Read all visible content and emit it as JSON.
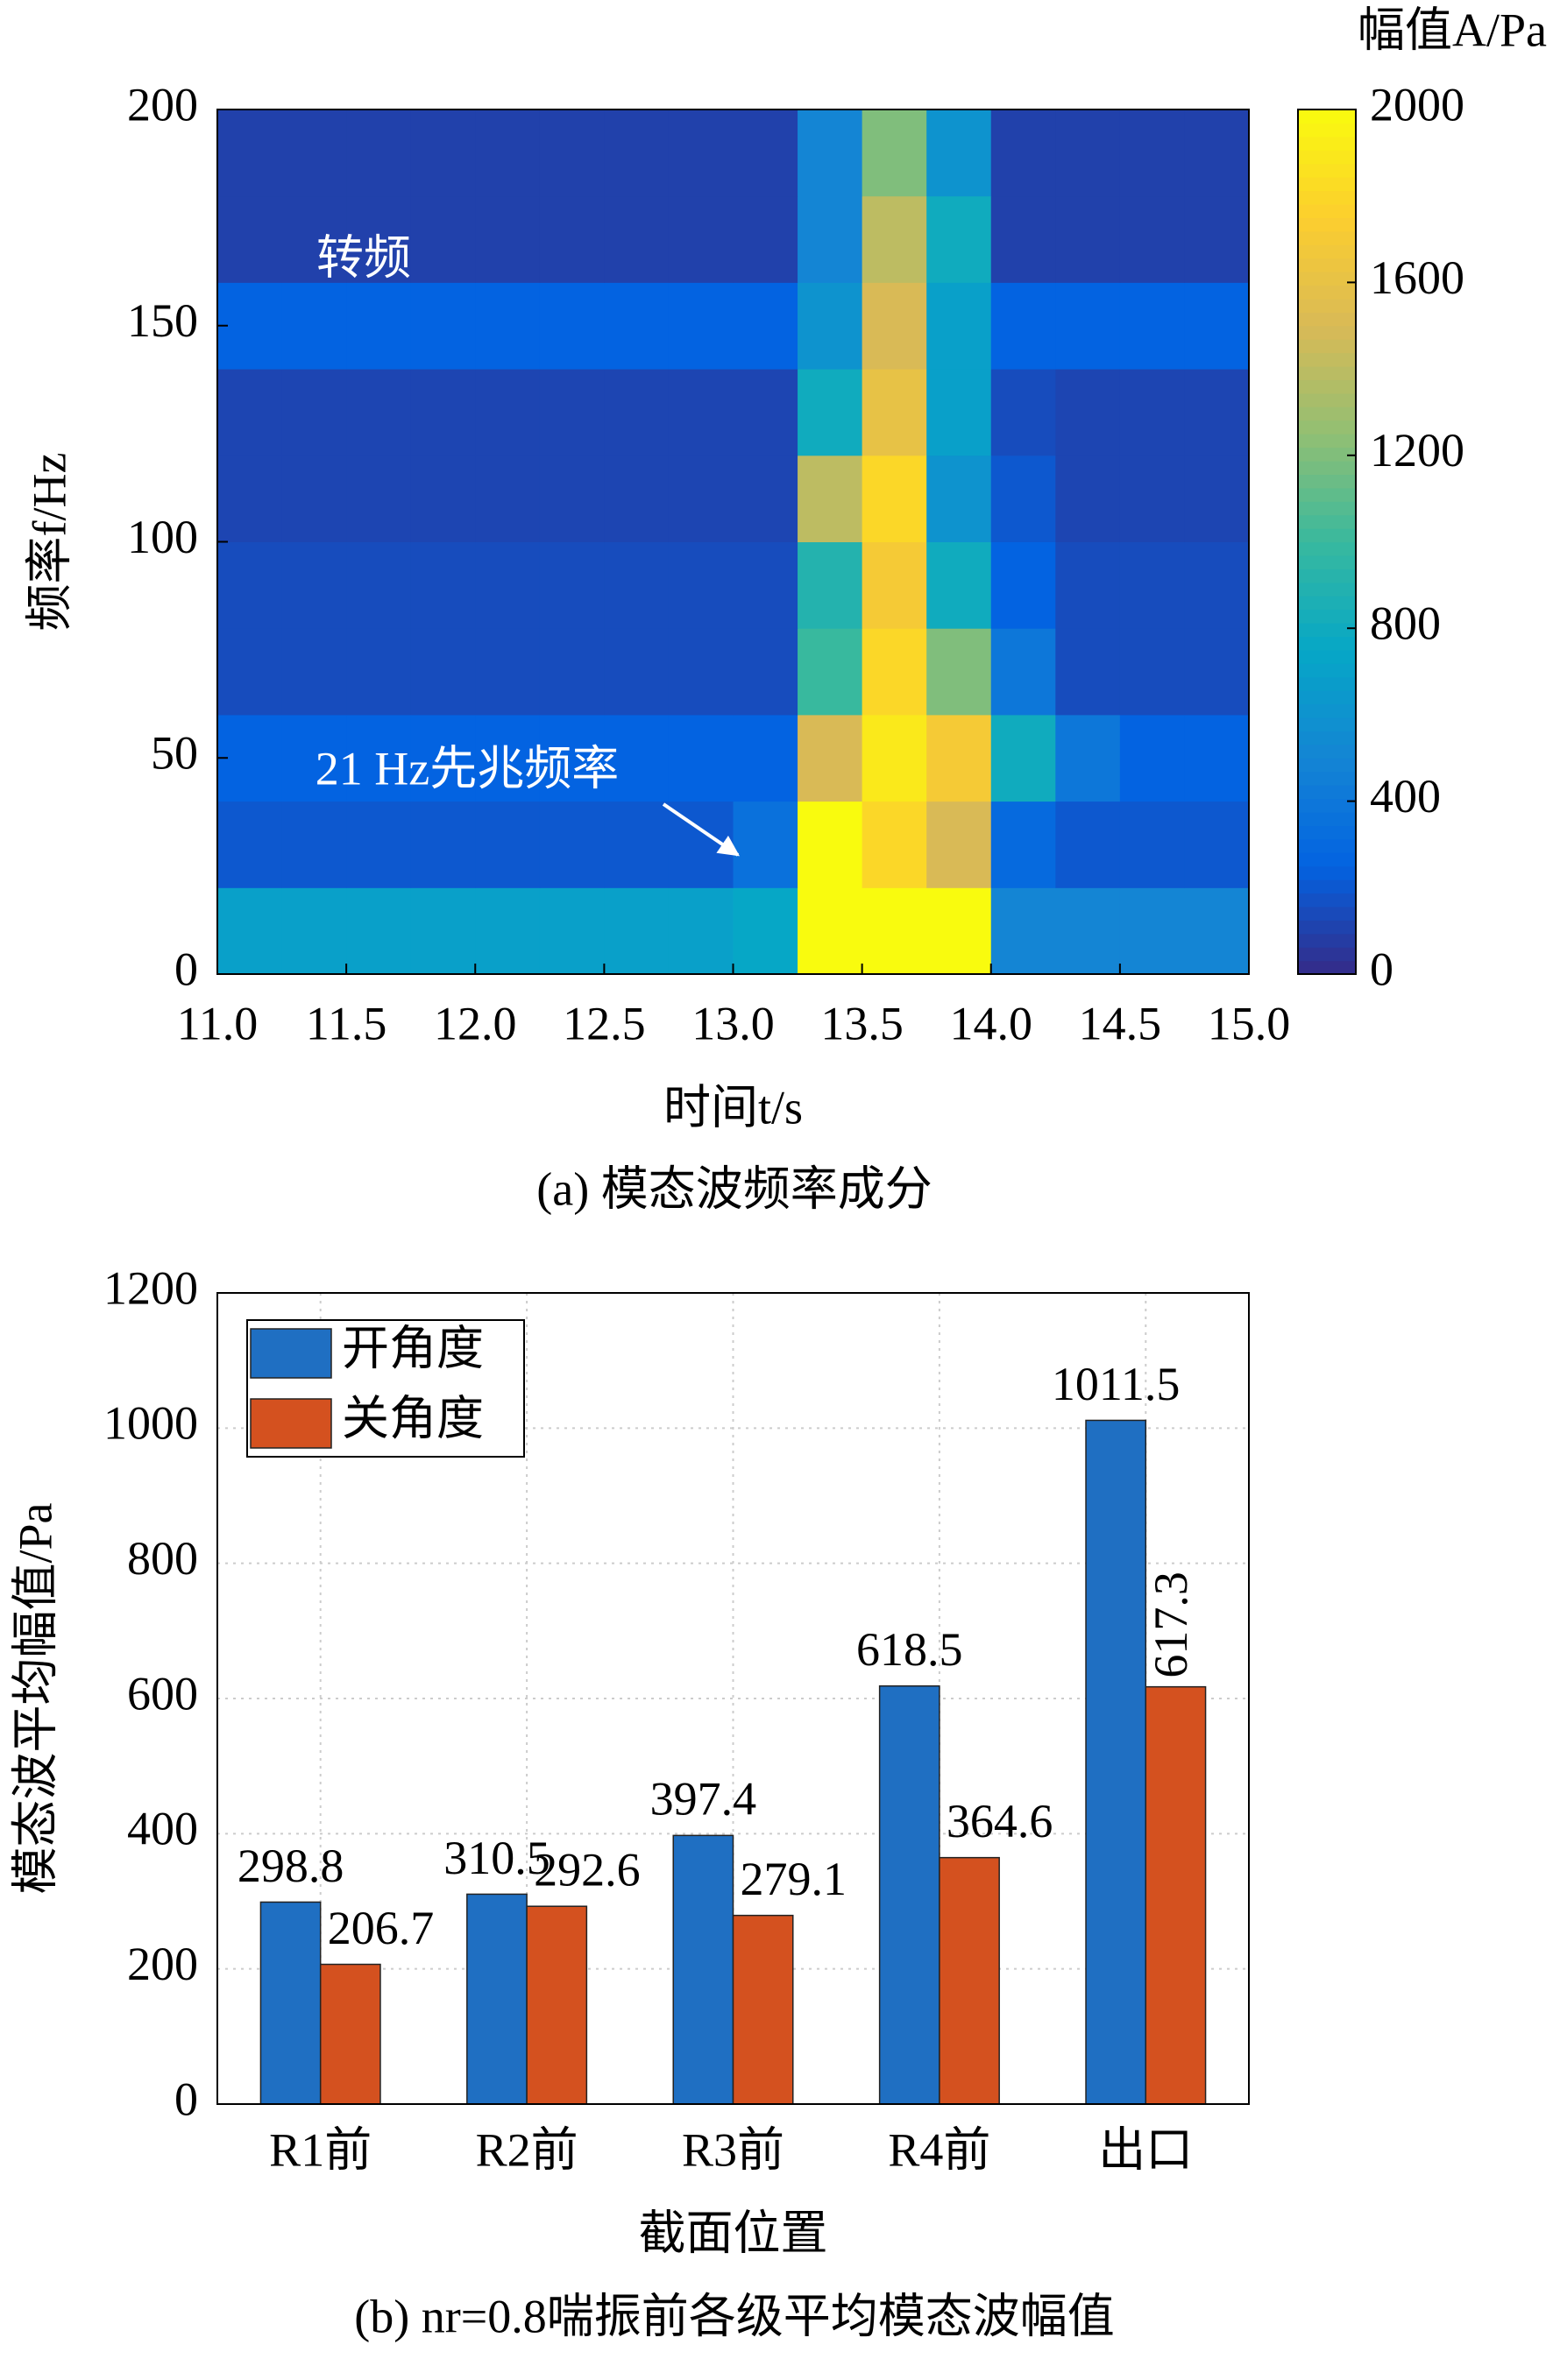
{
  "chart_data": [
    {
      "type": "heatmap",
      "caption": "(a) 模态波频率成分",
      "xlabel": "时间t/s",
      "ylabel": "频率f/Hz",
      "colorbar_label": "幅值A/Pa",
      "colormap": "parula",
      "annotations": [
        "转频",
        "21 Hz先兆频率"
      ],
      "xbins": [
        11,
        11.25,
        11.5,
        11.75,
        12,
        12.25,
        12.5,
        12.75,
        13,
        13.25,
        13.5,
        13.75,
        14,
        14.25,
        14.5,
        14.75,
        15
      ],
      "ybins": [
        0,
        20,
        40,
        60,
        80,
        100,
        120,
        140,
        160,
        180,
        200
      ],
      "z": [
        [
          700,
          700,
          700,
          700,
          700,
          700,
          700,
          700,
          750,
          2000,
          2000,
          2000,
          500,
          500,
          500,
          500
        ],
        [
          200,
          200,
          200,
          200,
          200,
          200,
          200,
          200,
          350,
          2000,
          1800,
          1500,
          300,
          200,
          200,
          200
        ],
        [
          250,
          250,
          250,
          250,
          250,
          250,
          250,
          250,
          250,
          1500,
          1900,
          1700,
          800,
          400,
          250,
          250
        ],
        [
          150,
          150,
          150,
          150,
          150,
          150,
          150,
          150,
          150,
          1000,
          1800,
          1200,
          400,
          150,
          150,
          150
        ],
        [
          150,
          150,
          150,
          150,
          150,
          150,
          150,
          150,
          150,
          900,
          1700,
          800,
          250,
          150,
          150,
          150
        ],
        [
          120,
          120,
          120,
          120,
          120,
          120,
          120,
          120,
          120,
          1400,
          1800,
          600,
          200,
          120,
          120,
          120
        ],
        [
          120,
          120,
          120,
          120,
          120,
          120,
          120,
          120,
          120,
          800,
          1600,
          700,
          150,
          120,
          120,
          120
        ],
        [
          250,
          250,
          250,
          250,
          250,
          250,
          250,
          250,
          250,
          600,
          1500,
          700,
          250,
          250,
          250,
          250
        ],
        [
          100,
          100,
          100,
          100,
          100,
          100,
          100,
          100,
          100,
          500,
          1400,
          800,
          100,
          100,
          100,
          100
        ],
        [
          100,
          100,
          100,
          100,
          100,
          100,
          100,
          100,
          100,
          500,
          1200,
          600,
          100,
          100,
          100,
          100
        ]
      ],
      "xlim": [
        11,
        15
      ],
      "xticks": [
        {
          "value": 11,
          "label": "11.0"
        },
        {
          "value": 11.5,
          "label": "11.5"
        },
        {
          "value": 12,
          "label": "12.0"
        },
        {
          "value": 12.5,
          "label": "12.5"
        },
        {
          "value": 13,
          "label": "13.0"
        },
        {
          "value": 13.5,
          "label": "13.5"
        },
        {
          "value": 14,
          "label": "14.0"
        },
        {
          "value": 14.5,
          "label": "14.5"
        },
        {
          "value": 15,
          "label": "15.0"
        }
      ],
      "ylim": [
        0,
        200
      ],
      "yticks": [
        0,
        50,
        100,
        150,
        200
      ],
      "zlim": [
        0,
        2000
      ],
      "zticks": [
        0,
        400,
        800,
        1200,
        1600,
        2000
      ]
    },
    {
      "type": "bar",
      "caption": "(b) nr=0.8喘振前各级平均模态波幅值",
      "xlabel": "截面位置",
      "ylabel": "模态波平均幅值/Pa",
      "categories": [
        "R1前",
        "R2前",
        "R3前",
        "R4前",
        "出口"
      ],
      "series": [
        {
          "name": "开角度",
          "color": "#1f6fc2",
          "values": [
            298.8,
            310.5,
            397.4,
            618.5,
            1011.5
          ]
        },
        {
          "name": "关角度",
          "color": "#d4511f",
          "values": [
            206.7,
            292.6,
            279.1,
            364.6,
            617.3
          ]
        }
      ],
      "ylim": [
        0,
        1200
      ],
      "yticks": [
        0,
        200,
        400,
        600,
        800,
        1000,
        1200
      ],
      "grid": true,
      "legend": "upper left"
    }
  ]
}
